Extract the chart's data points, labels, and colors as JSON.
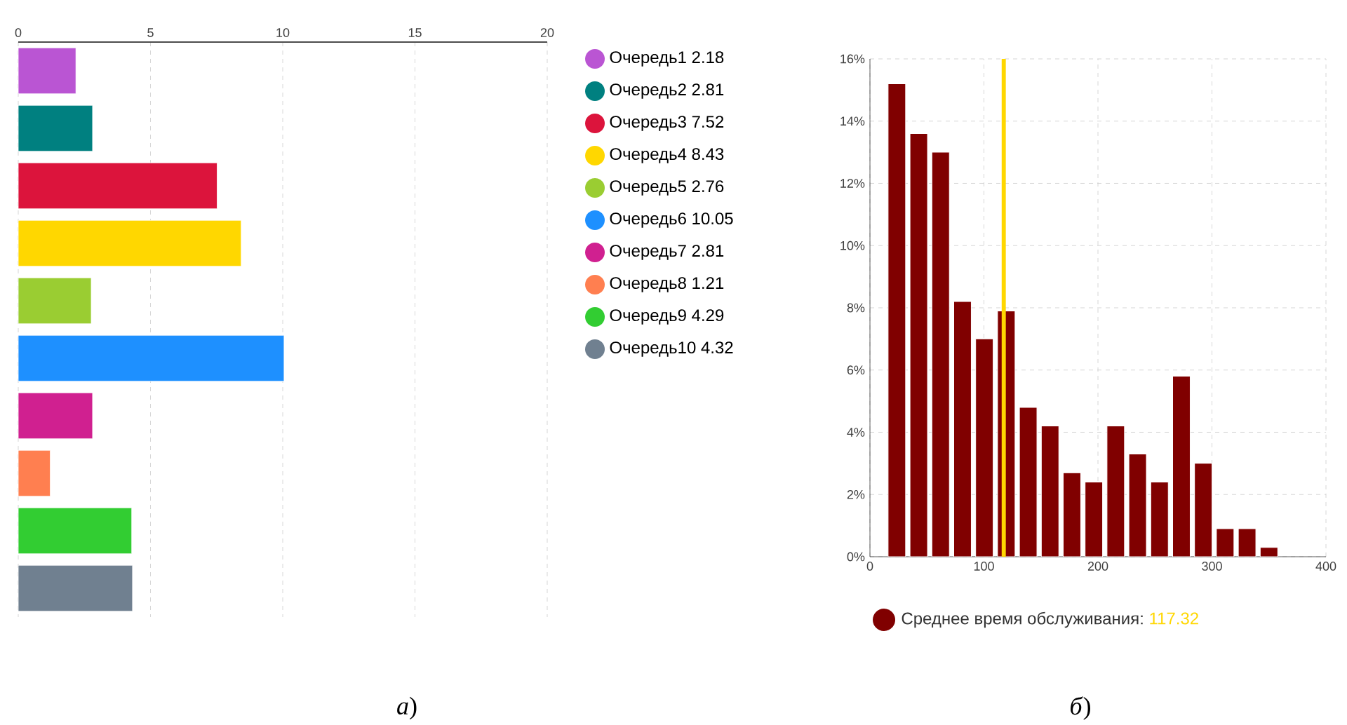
{
  "chart_data": [
    {
      "type": "bar",
      "orientation": "horizontal",
      "categories": [
        null
      ],
      "series": [
        {
          "name": "Очередь1 2.18",
          "color": "#ba55d3",
          "values": [
            2.18
          ]
        },
        {
          "name": "Очередь2 2.81",
          "color": "#008080",
          "values": [
            2.81
          ]
        },
        {
          "name": "Очередь3 7.52",
          "color": "#dc143c",
          "values": [
            7.52
          ]
        },
        {
          "name": "Очередь4 8.43",
          "color": "#ffd700",
          "values": [
            8.43
          ]
        },
        {
          "name": "Очередь5 2.76",
          "color": "#9acd32",
          "values": [
            2.76
          ]
        },
        {
          "name": "Очередь6 10.05",
          "color": "#1e90ff",
          "values": [
            10.05
          ]
        },
        {
          "name": "Очередь7 2.81",
          "color": "#d02090",
          "values": [
            2.81
          ]
        },
        {
          "name": "Очередь8 1.21",
          "color": "#ff7f50",
          "values": [
            1.21
          ]
        },
        {
          "name": "Очередь9 4.29",
          "color": "#32cd32",
          "values": [
            4.29
          ]
        },
        {
          "name": "Очередь10 4.32",
          "color": "#708090",
          "values": [
            4.32
          ]
        }
      ],
      "xlim": [
        0,
        20
      ],
      "xticks": [
        0,
        5,
        10,
        15,
        20
      ],
      "grid": "x",
      "legend": "right",
      "annotations": [
        "*а*)"
      ]
    },
    {
      "type": "histogram",
      "bins": [
        14,
        33.2,
        52.4,
        71.6,
        90.8,
        110,
        129.2,
        148.4,
        167.6,
        186.8,
        206,
        225.2,
        244.4,
        263.6,
        282.8,
        302,
        321.2,
        340.4,
        359.6
      ],
      "series": [
        {
          "name": "Среднее время обслуживания:",
          "color": "#800000",
          "values": [
            15.2,
            13.6,
            13.0,
            8.2,
            7.0,
            7.9,
            4.8,
            4.2,
            2.7,
            2.4,
            4.2,
            3.3,
            2.4,
            5.8,
            3.0,
            0.9,
            0.9,
            0.3
          ]
        }
      ],
      "xlim": [
        0,
        400
      ],
      "xticks": [
        0,
        100,
        200,
        300,
        400
      ],
      "ylim": [
        0,
        16
      ],
      "yticks": [
        {
          "value": 0,
          "label": "0%"
        },
        {
          "value": 2,
          "label": "2%"
        },
        {
          "value": 4,
          "label": "4%"
        },
        {
          "value": 6,
          "label": "6%"
        },
        {
          "value": 8,
          "label": "8%"
        },
        {
          "value": 10,
          "label": "10%"
        },
        {
          "value": 12,
          "label": "12%"
        },
        {
          "value": 14,
          "label": "14%"
        },
        {
          "value": 16,
          "label": "16%"
        }
      ],
      "ref_lines": [
        {
          "axis": "x",
          "value": 117.32,
          "label": "117.32",
          "color": "#ffd700"
        }
      ],
      "grid": true,
      "legend": "bottom",
      "annotations": [
        "*б*)"
      ]
    }
  ]
}
